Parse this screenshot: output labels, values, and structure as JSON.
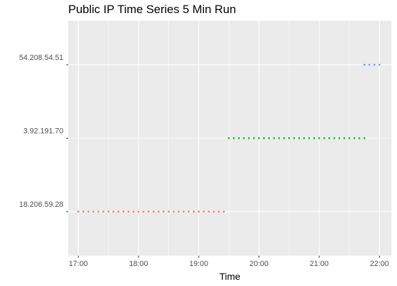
{
  "chart_data": {
    "type": "scatter",
    "title": "Public IP Time Series 5 Min Run",
    "xlabel": "Time",
    "ylabel": "",
    "x_ticks": [
      "17:00",
      "18:00",
      "19:00",
      "20:00",
      "21:00",
      "22:00"
    ],
    "xlim": [
      "16:50",
      "22:12"
    ],
    "y_categories": [
      "18.206.59.28",
      "3.92.191.70",
      "54.208.54.51"
    ],
    "grid": true,
    "legend": "none",
    "point_interval_minutes": 5,
    "series": [
      {
        "category": "18.206.59.28",
        "color": "#F8766D",
        "x": [
          "17:00",
          "17:05",
          "17:10",
          "17:15",
          "17:20",
          "17:25",
          "17:30",
          "17:35",
          "17:40",
          "17:45",
          "17:50",
          "17:55",
          "18:00",
          "18:05",
          "18:10",
          "18:15",
          "18:20",
          "18:25",
          "18:30",
          "18:35",
          "18:40",
          "18:45",
          "18:50",
          "18:55",
          "19:00",
          "19:05",
          "19:10",
          "19:15",
          "19:20",
          "19:25"
        ]
      },
      {
        "category": "3.92.191.70",
        "color": "#00BA38",
        "x": [
          "19:30",
          "19:35",
          "19:40",
          "19:45",
          "19:50",
          "19:55",
          "20:00",
          "20:05",
          "20:10",
          "20:15",
          "20:20",
          "20:25",
          "20:30",
          "20:35",
          "20:40",
          "20:45",
          "20:50",
          "20:55",
          "21:00",
          "21:05",
          "21:10",
          "21:15",
          "21:20",
          "21:25",
          "21:30",
          "21:35",
          "21:40",
          "21:45"
        ]
      },
      {
        "category": "54.208.54.51",
        "color": "#619CFF",
        "x": [
          "21:45",
          "21:50",
          "21:55",
          "22:00"
        ]
      }
    ]
  }
}
